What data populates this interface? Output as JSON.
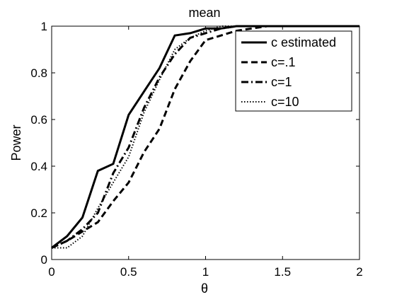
{
  "chart_data": {
    "type": "line",
    "title": "mean",
    "xlabel": "θ",
    "ylabel": "Power",
    "xlim": [
      0,
      2
    ],
    "ylim": [
      0,
      1
    ],
    "xticks": [
      0,
      0.5,
      1,
      1.5,
      2
    ],
    "xtick_labels": [
      "0",
      "0.5",
      "1",
      "1.5",
      "2"
    ],
    "yticks": [
      0,
      0.2,
      0.4,
      0.6,
      0.8,
      1
    ],
    "ytick_labels": [
      "0",
      "0.2",
      "0.4",
      "0.6",
      "0.8",
      "1"
    ],
    "grid": false,
    "legend_position": "top-right",
    "series": [
      {
        "name": "c estimated",
        "line_style": "solid",
        "color": "#000000",
        "x": [
          0,
          0.1,
          0.2,
          0.3,
          0.4,
          0.5,
          0.6,
          0.7,
          0.8,
          0.9,
          1.0,
          1.1,
          1.2,
          1.3,
          1.4,
          1.5,
          2.0
        ],
        "y": [
          0.05,
          0.1,
          0.18,
          0.38,
          0.41,
          0.62,
          0.72,
          0.82,
          0.96,
          0.97,
          0.99,
          0.99,
          1.0,
          1.0,
          1.0,
          1.0,
          1.0
        ]
      },
      {
        "name": "c=.1",
        "line_style": "dashed",
        "color": "#000000",
        "x": [
          0,
          0.1,
          0.2,
          0.3,
          0.4,
          0.5,
          0.6,
          0.7,
          0.8,
          0.9,
          1.0,
          1.1,
          1.2,
          1.3,
          1.4,
          1.5,
          2.0
        ],
        "y": [
          0.05,
          0.08,
          0.12,
          0.16,
          0.25,
          0.33,
          0.46,
          0.56,
          0.73,
          0.85,
          0.94,
          0.96,
          0.98,
          0.99,
          1.0,
          1.0,
          1.0
        ]
      },
      {
        "name": "c=1",
        "line_style": "dashdot",
        "color": "#000000",
        "x": [
          0,
          0.1,
          0.2,
          0.3,
          0.4,
          0.5,
          0.6,
          0.7,
          0.8,
          0.9,
          1.0,
          1.1,
          1.2,
          1.3,
          1.4,
          1.5,
          2.0
        ],
        "y": [
          0.05,
          0.08,
          0.13,
          0.2,
          0.37,
          0.48,
          0.65,
          0.78,
          0.88,
          0.95,
          0.97,
          0.99,
          1.0,
          1.0,
          1.0,
          1.0,
          1.0
        ]
      },
      {
        "name": "c=10",
        "line_style": "dotted",
        "color": "#000000",
        "x": [
          0,
          0.1,
          0.2,
          0.3,
          0.4,
          0.5,
          0.6,
          0.7,
          0.8,
          0.9,
          1.0,
          1.1,
          1.2,
          1.3,
          1.4,
          1.5,
          2.0
        ],
        "y": [
          0.05,
          0.05,
          0.1,
          0.22,
          0.33,
          0.44,
          0.63,
          0.77,
          0.9,
          0.95,
          0.98,
          1.0,
          1.0,
          1.0,
          1.0,
          1.0,
          1.0
        ]
      }
    ]
  }
}
